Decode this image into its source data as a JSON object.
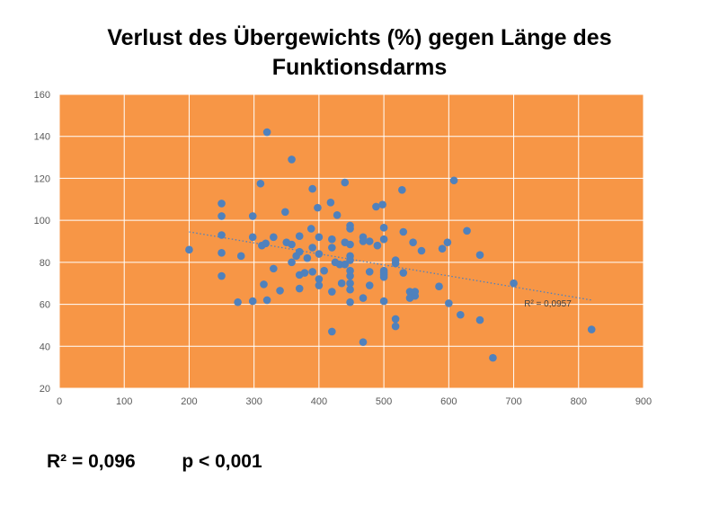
{
  "title_line1": "Verlust des Übergewichts (%) gegen Länge des",
  "title_line2": "Funktionsdarms",
  "stats": {
    "r2": "R² = 0,096",
    "p": "p < 0,001"
  },
  "colors": {
    "plot_background": "#F79646",
    "points": "#4F81BD",
    "gridlines": "#FFFFFF",
    "trendline": "#4F81BD"
  },
  "chart_data": {
    "type": "scatter",
    "title": "Verlust des Übergewichts (%) gegen Länge des Funktionsdarms",
    "xlabel": "",
    "ylabel": "",
    "xlim": [
      0,
      900
    ],
    "ylim": [
      20,
      160
    ],
    "xticks": [
      0,
      100,
      200,
      300,
      400,
      500,
      600,
      700,
      800,
      900
    ],
    "yticks": [
      20,
      40,
      60,
      80,
      100,
      120,
      140,
      160
    ],
    "grid": true,
    "trendline": {
      "type": "linear",
      "x": [
        200,
        820
      ],
      "y": [
        94.5,
        62
      ],
      "label": "R² = 0,0957",
      "style": "dotted"
    },
    "series": [
      {
        "points": [
          [
            200,
            86
          ],
          [
            250,
            108
          ],
          [
            250,
            102
          ],
          [
            250,
            93
          ],
          [
            250,
            84.5
          ],
          [
            250,
            73.5
          ],
          [
            275,
            61
          ],
          [
            280,
            83
          ],
          [
            298,
            102
          ],
          [
            298,
            92
          ],
          [
            298,
            61.5
          ],
          [
            310,
            117.5
          ],
          [
            312,
            88
          ],
          [
            315,
            69.5
          ],
          [
            318,
            89
          ],
          [
            320,
            62
          ],
          [
            320,
            142
          ],
          [
            330,
            92
          ],
          [
            330,
            77
          ],
          [
            340,
            66.5
          ],
          [
            348,
            104
          ],
          [
            350,
            89.5
          ],
          [
            358,
            88.5
          ],
          [
            358,
            80
          ],
          [
            358,
            129
          ],
          [
            365,
            83
          ],
          [
            370,
            92.5
          ],
          [
            370,
            85
          ],
          [
            370,
            74
          ],
          [
            370,
            67.5
          ],
          [
            378,
            75
          ],
          [
            382,
            82
          ],
          [
            388,
            96
          ],
          [
            390,
            115
          ],
          [
            390,
            87
          ],
          [
            390,
            75.5
          ],
          [
            398,
            106
          ],
          [
            400,
            92
          ],
          [
            400,
            84
          ],
          [
            400,
            72
          ],
          [
            400,
            69
          ],
          [
            408,
            76
          ],
          [
            418,
            108.5
          ],
          [
            420,
            47
          ],
          [
            420,
            91
          ],
          [
            420,
            87
          ],
          [
            420,
            66
          ],
          [
            425,
            80
          ],
          [
            428,
            102.5
          ],
          [
            432,
            79
          ],
          [
            435,
            70
          ],
          [
            440,
            118
          ],
          [
            440,
            89.5
          ],
          [
            440,
            79
          ],
          [
            448,
            97.5
          ],
          [
            448,
            96
          ],
          [
            448,
            88.5
          ],
          [
            448,
            83
          ],
          [
            448,
            81
          ],
          [
            448,
            76
          ],
          [
            448,
            73.5
          ],
          [
            448,
            70
          ],
          [
            448,
            67
          ],
          [
            448,
            61
          ],
          [
            468,
            42
          ],
          [
            468,
            92
          ],
          [
            468,
            90
          ],
          [
            468,
            63
          ],
          [
            478,
            90
          ],
          [
            478,
            75.5
          ],
          [
            478,
            69
          ],
          [
            488,
            106.5
          ],
          [
            490,
            88
          ],
          [
            498,
            107.5
          ],
          [
            500,
            96.5
          ],
          [
            500,
            91
          ],
          [
            500,
            76
          ],
          [
            500,
            75
          ],
          [
            500,
            74
          ],
          [
            500,
            73
          ],
          [
            500,
            61.5
          ],
          [
            518,
            81
          ],
          [
            518,
            79.5
          ],
          [
            518,
            53
          ],
          [
            518,
            49.5
          ],
          [
            528,
            114.5
          ],
          [
            530,
            94.5
          ],
          [
            530,
            75
          ],
          [
            540,
            66
          ],
          [
            540,
            63
          ],
          [
            545,
            89.5
          ],
          [
            548,
            64
          ],
          [
            548,
            66
          ],
          [
            558,
            85.5
          ],
          [
            585,
            68.5
          ],
          [
            590,
            86.5
          ],
          [
            598,
            89.5
          ],
          [
            600,
            60.5
          ],
          [
            608,
            119
          ],
          [
            618,
            55
          ],
          [
            628,
            95
          ],
          [
            648,
            83.5
          ],
          [
            648,
            52.5
          ],
          [
            668,
            34.5
          ],
          [
            700,
            70
          ],
          [
            820,
            48
          ]
        ]
      }
    ]
  }
}
